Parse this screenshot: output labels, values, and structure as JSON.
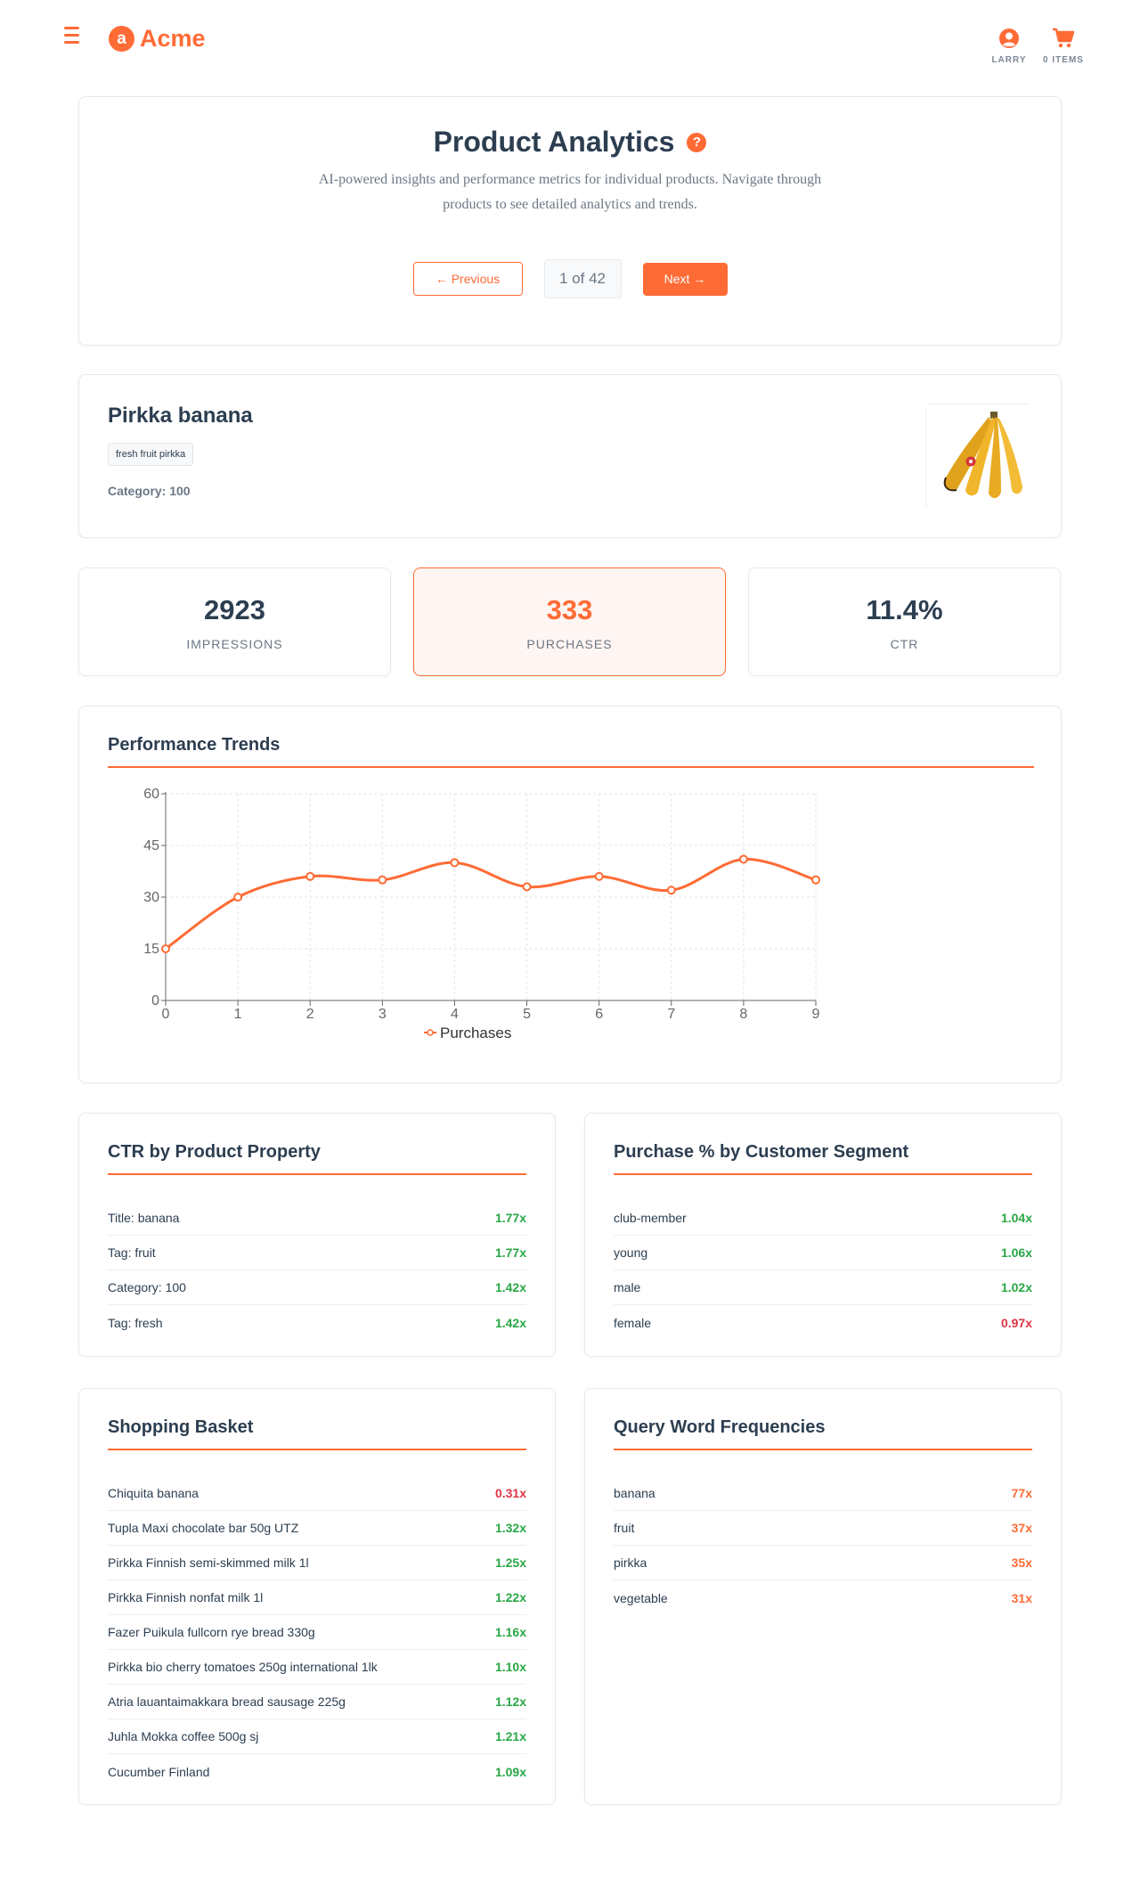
{
  "header": {
    "logo_letter": "a",
    "brand": "Acme",
    "user_label": "LARRY",
    "cart_label": "0 ITEMS",
    "accent": "#ff6b35"
  },
  "hero": {
    "title": "Product Analytics",
    "help_icon": "?",
    "description": "AI-powered insights and performance metrics for individual products. Navigate through products to see detailed analytics and trends.",
    "prev_label": "← Previous",
    "page_indicator": "1 of 42",
    "next_label": "Next →"
  },
  "product": {
    "name": "Pirkka banana",
    "tag": "fresh fruit pirkka",
    "category": "Category: 100",
    "image_icon": "banana-image"
  },
  "metrics": [
    {
      "value": "2923",
      "label": "IMPRESSIONS"
    },
    {
      "value": "333",
      "label": "PURCHASES"
    },
    {
      "value": "11.4%",
      "label": "CTR"
    }
  ],
  "trends": {
    "title": "Performance Trends"
  },
  "chart_data": {
    "type": "line",
    "title": "",
    "xlabel": "",
    "ylabel": "",
    "x": [
      0,
      1,
      2,
      3,
      4,
      5,
      6,
      7,
      8,
      9
    ],
    "x_ticks": [
      "0",
      "1",
      "2",
      "3",
      "4",
      "5",
      "6",
      "7",
      "8",
      "9"
    ],
    "y_ticks": [
      "0",
      "15",
      "30",
      "45",
      "60"
    ],
    "ylim": [
      0,
      60
    ],
    "grid": true,
    "legend_position": "bottom",
    "series": [
      {
        "name": "Purchases",
        "color": "#ff6b35",
        "values": [
          15,
          30,
          36,
          35,
          40,
          33,
          36,
          32,
          41,
          35
        ]
      }
    ]
  },
  "ctr_property": {
    "title": "CTR by Product Property",
    "rows": [
      {
        "label": "Title: banana",
        "value": "1.77x",
        "color": "#28a745"
      },
      {
        "label": "Tag: fruit",
        "value": "1.77x",
        "color": "#28a745"
      },
      {
        "label": "Category: 100",
        "value": "1.42x",
        "color": "#28a745"
      },
      {
        "label": "Tag: fresh",
        "value": "1.42x",
        "color": "#28a745"
      }
    ]
  },
  "segments": {
    "title": "Purchase % by Customer Segment",
    "rows": [
      {
        "label": "club-member",
        "value": "1.04x",
        "color": "#28a745"
      },
      {
        "label": "young",
        "value": "1.06x",
        "color": "#28a745"
      },
      {
        "label": "male",
        "value": "1.02x",
        "color": "#28a745"
      },
      {
        "label": "female",
        "value": "0.97x",
        "color": "#dc3545"
      }
    ]
  },
  "basket": {
    "title": "Shopping Basket",
    "rows": [
      {
        "label": "Chiquita banana",
        "value": "0.31x",
        "color": "#dc3545"
      },
      {
        "label": "Tupla Maxi chocolate bar 50g UTZ",
        "value": "1.32x",
        "color": "#28a745"
      },
      {
        "label": "Pirkka Finnish semi-skimmed milk 1l",
        "value": "1.25x",
        "color": "#28a745"
      },
      {
        "label": "Pirkka Finnish nonfat milk 1l",
        "value": "1.22x",
        "color": "#28a745"
      },
      {
        "label": "Fazer Puikula fullcorn rye bread 330g",
        "value": "1.16x",
        "color": "#28a745"
      },
      {
        "label": "Pirkka bio cherry tomatoes 250g international 1lk",
        "value": "1.10x",
        "color": "#28a745"
      },
      {
        "label": "Atria lauantaimakkara bread sausage 225g",
        "value": "1.12x",
        "color": "#28a745"
      },
      {
        "label": "Juhla Mokka coffee 500g sj",
        "value": "1.21x",
        "color": "#28a745"
      },
      {
        "label": "Cucumber Finland",
        "value": "1.09x",
        "color": "#28a745"
      }
    ]
  },
  "query_words": {
    "title": "Query Word Frequencies",
    "rows": [
      {
        "label": "banana",
        "value": "77x",
        "color": "#ff6b35"
      },
      {
        "label": "fruit",
        "value": "37x",
        "color": "#ff6b35"
      },
      {
        "label": "pirkka",
        "value": "35x",
        "color": "#ff6b35"
      },
      {
        "label": "vegetable",
        "value": "31x",
        "color": "#ff6b35"
      }
    ]
  }
}
